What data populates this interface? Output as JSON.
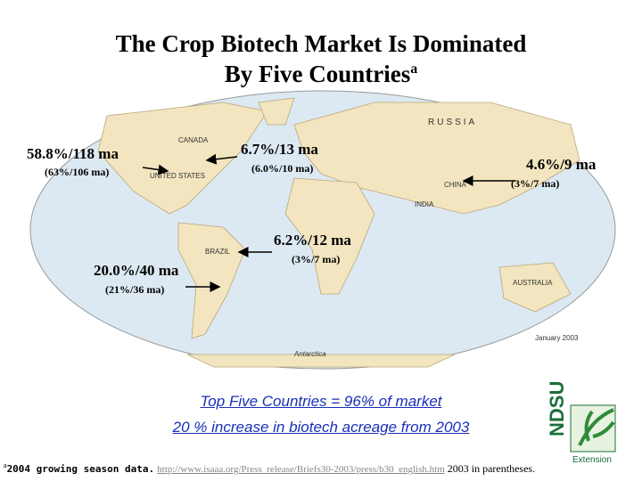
{
  "title": [
    "The Crop Biotech Market Is Dominated",
    "By Five Countries"
  ],
  "title_superscript": "a",
  "map_labels": [
    "CANADA",
    "UNITED STATES",
    "RUSSIA",
    "CHINA",
    "BRAZIL",
    "INDIA",
    "AUSTRALIA",
    "Antarctica",
    "January 2003"
  ],
  "callouts": [
    {
      "main": "58.8%/118 ma",
      "sub": "(63%/106 ma)"
    },
    {
      "main": "6.7%/13 ma",
      "sub": "(6.0%/10 ma)"
    },
    {
      "main": "4.6%/9 ma",
      "sub": "(3%/7 ma)"
    },
    {
      "main": "6.2%/12 ma",
      "sub": "(3%/7 ma)"
    },
    {
      "main": "20.0%/40 ma",
      "sub": "(21%/36 ma)"
    }
  ],
  "summary": [
    "Top Five Countries = 96% of market",
    "20 % increase in biotech acreage from 2003"
  ],
  "footnote": {
    "marker": "a",
    "text": "2004 growing season data.",
    "link": "http://www.isaaa.org/Press_release/Briefs30-2003/press/b30_english.htm",
    "note": "2003 in parentheses."
  },
  "logo": {
    "name": "NDSU",
    "tagline": "Extension"
  }
}
